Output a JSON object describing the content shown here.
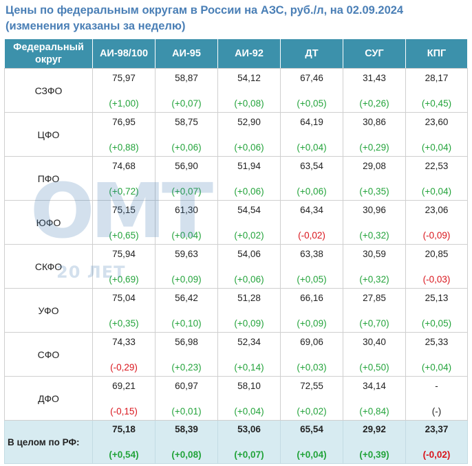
{
  "title_line1": "Цены по федеральным округам в России на АЗС, руб./л, на 02.09.2024",
  "title_line2": "(изменения указаны за неделю)",
  "headers": [
    "Федеральный округ",
    "АИ-98/100",
    "АИ-95",
    "АИ-92",
    "ДТ",
    "СУГ",
    "КПГ"
  ],
  "rows": [
    {
      "region": "СЗФО",
      "cells": [
        {
          "value": "75,97",
          "change": "(+1,00)",
          "trend": "pos"
        },
        {
          "value": "58,87",
          "change": "(+0,07)",
          "trend": "pos"
        },
        {
          "value": "54,12",
          "change": "(+0,08)",
          "trend": "pos"
        },
        {
          "value": "67,46",
          "change": "(+0,05)",
          "trend": "pos"
        },
        {
          "value": "31,43",
          "change": "(+0,26)",
          "trend": "pos"
        },
        {
          "value": "28,17",
          "change": "(+0,45)",
          "trend": "pos"
        }
      ]
    },
    {
      "region": "ЦФО",
      "cells": [
        {
          "value": "76,95",
          "change": "(+0,88)",
          "trend": "pos"
        },
        {
          "value": "58,75",
          "change": "(+0,06)",
          "trend": "pos"
        },
        {
          "value": "52,90",
          "change": "(+0,06)",
          "trend": "pos"
        },
        {
          "value": "64,19",
          "change": "(+0,04)",
          "trend": "pos"
        },
        {
          "value": "30,86",
          "change": "(+0,29)",
          "trend": "pos"
        },
        {
          "value": "23,60",
          "change": "(+0,04)",
          "trend": "pos"
        }
      ]
    },
    {
      "region": "ПФО",
      "cells": [
        {
          "value": "74,68",
          "change": "(+0,72)",
          "trend": "pos"
        },
        {
          "value": "56,90",
          "change": "(+0,07)",
          "trend": "pos"
        },
        {
          "value": "51,94",
          "change": "(+0,06)",
          "trend": "pos"
        },
        {
          "value": "63,54",
          "change": "(+0,06)",
          "trend": "pos"
        },
        {
          "value": "29,08",
          "change": "(+0,35)",
          "trend": "pos"
        },
        {
          "value": "22,53",
          "change": "(+0,04)",
          "trend": "pos"
        }
      ]
    },
    {
      "region": "ЮФО",
      "cells": [
        {
          "value": "75,15",
          "change": "(+0,65)",
          "trend": "pos"
        },
        {
          "value": "61,30",
          "change": "(+0,04)",
          "trend": "pos"
        },
        {
          "value": "54,54",
          "change": "(+0,02)",
          "trend": "pos"
        },
        {
          "value": "64,34",
          "change": "(-0,02)",
          "trend": "neg"
        },
        {
          "value": "30,96",
          "change": "(+0,32)",
          "trend": "pos"
        },
        {
          "value": "23,06",
          "change": "(-0,09)",
          "trend": "neg"
        }
      ]
    },
    {
      "region": "СКФО",
      "cells": [
        {
          "value": "75,94",
          "change": "(+0,69)",
          "trend": "pos"
        },
        {
          "value": "59,63",
          "change": "(+0,09)",
          "trend": "pos"
        },
        {
          "value": "54,06",
          "change": "(+0,06)",
          "trend": "pos"
        },
        {
          "value": "63,38",
          "change": "(+0,05)",
          "trend": "pos"
        },
        {
          "value": "30,59",
          "change": "(+0,32)",
          "trend": "pos"
        },
        {
          "value": "20,85",
          "change": "(-0,03)",
          "trend": "neg"
        }
      ]
    },
    {
      "region": "УФО",
      "cells": [
        {
          "value": "75,04",
          "change": "(+0,35)",
          "trend": "pos"
        },
        {
          "value": "56,42",
          "change": "(+0,10)",
          "trend": "pos"
        },
        {
          "value": "51,28",
          "change": "(+0,09)",
          "trend": "pos"
        },
        {
          "value": "66,16",
          "change": "(+0,09)",
          "trend": "pos"
        },
        {
          "value": "27,85",
          "change": "(+0,70)",
          "trend": "pos"
        },
        {
          "value": "25,13",
          "change": "(+0,05)",
          "trend": "pos"
        }
      ]
    },
    {
      "region": "СФО",
      "cells": [
        {
          "value": "74,33",
          "change": "(-0,29)",
          "trend": "neg"
        },
        {
          "value": "56,98",
          "change": "(+0,23)",
          "trend": "pos"
        },
        {
          "value": "52,34",
          "change": "(+0,14)",
          "trend": "pos"
        },
        {
          "value": "69,06",
          "change": "(+0,03)",
          "trend": "pos"
        },
        {
          "value": "30,40",
          "change": "(+0,50)",
          "trend": "pos"
        },
        {
          "value": "25,33",
          "change": "(+0,04)",
          "trend": "pos"
        }
      ]
    },
    {
      "region": "ДФО",
      "cells": [
        {
          "value": "69,21",
          "change": "(-0,15)",
          "trend": "neg"
        },
        {
          "value": "60,97",
          "change": "(+0,01)",
          "trend": "pos"
        },
        {
          "value": "58,10",
          "change": "(+0,04)",
          "trend": "pos"
        },
        {
          "value": "72,55",
          "change": "(+0,02)",
          "trend": "pos"
        },
        {
          "value": "34,14",
          "change": "(+0,84)",
          "trend": "pos"
        },
        {
          "value": "-",
          "change": "(-)",
          "trend": "neu"
        }
      ]
    }
  ],
  "total": {
    "region": "В целом по РФ:",
    "cells": [
      {
        "value": "75,18",
        "change": "(+0,54)",
        "trend": "pos"
      },
      {
        "value": "58,39",
        "change": "(+0,08)",
        "trend": "pos"
      },
      {
        "value": "53,06",
        "change": "(+0,07)",
        "trend": "pos"
      },
      {
        "value": "65,54",
        "change": "(+0,04)",
        "trend": "pos"
      },
      {
        "value": "29,92",
        "change": "(+0,39)",
        "trend": "pos"
      },
      {
        "value": "23,37",
        "change": "(-0,02)",
        "trend": "neg"
      }
    ]
  },
  "watermark": {
    "logo": "OMT",
    "sub": "20 ЛЕТ"
  },
  "colors": {
    "header_bg": "#3c91ab",
    "title": "#4a7fb6",
    "positive": "#22a33a",
    "negative": "#d9141b",
    "total_bg": "#d7ebf1"
  }
}
